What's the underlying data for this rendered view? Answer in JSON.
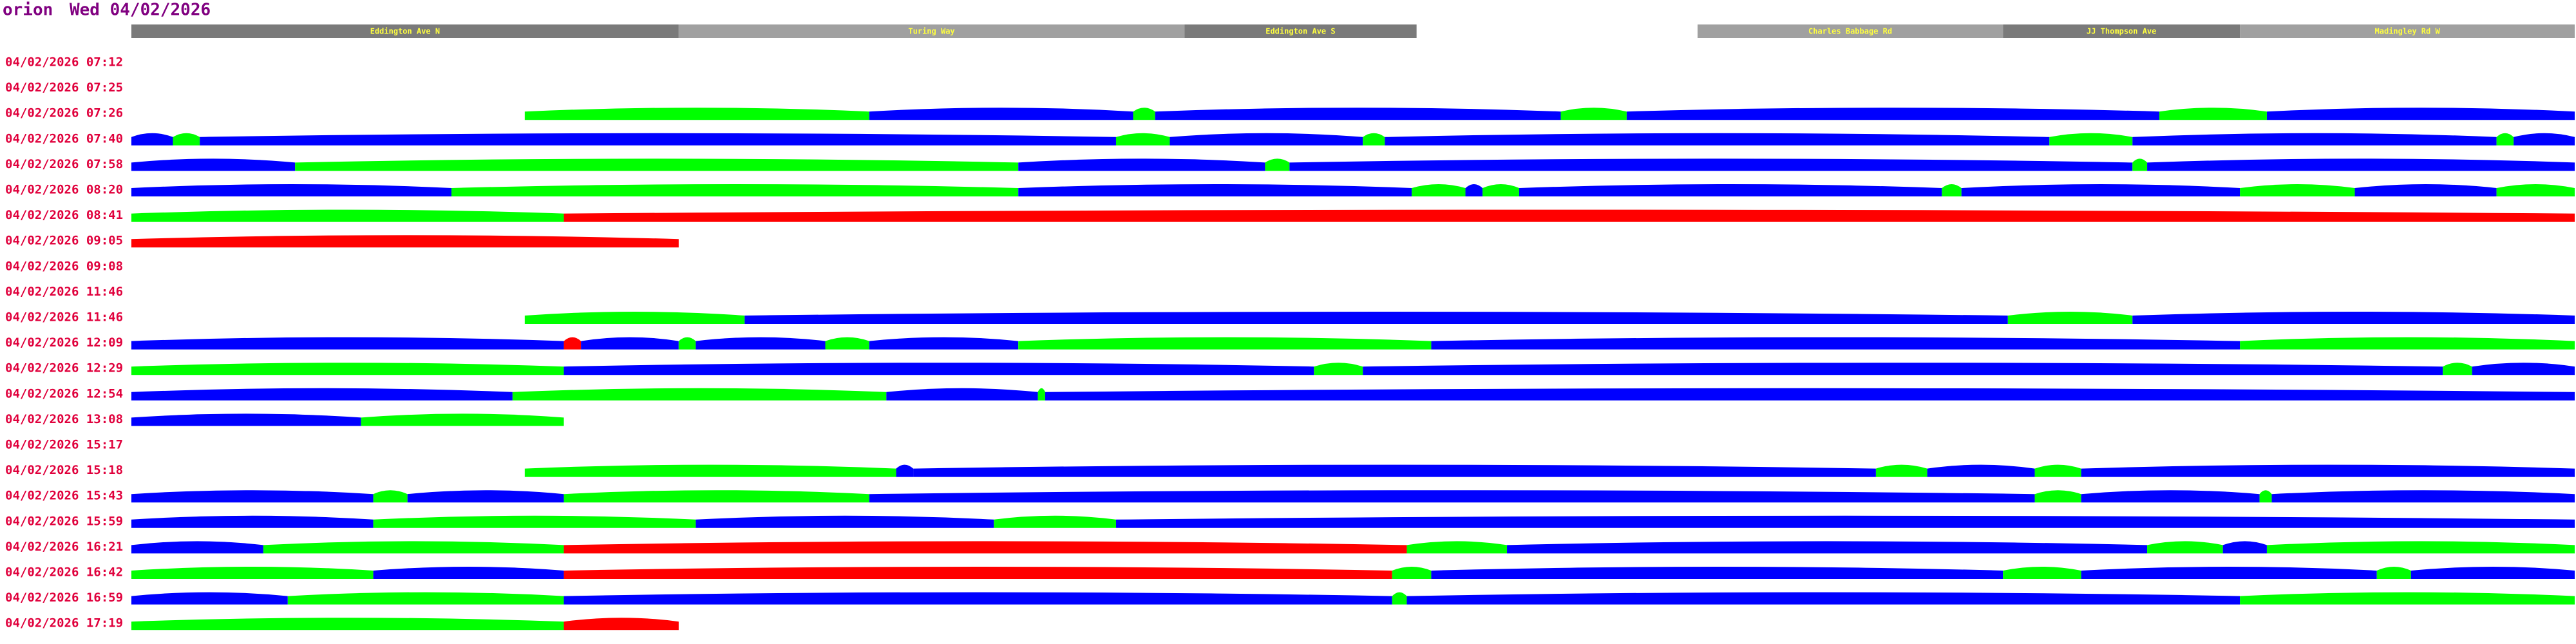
{
  "header": {
    "host": "orion",
    "date": "Wed 04/02/2026"
  },
  "route_range": [
    0,
    100
  ],
  "roads": [
    {
      "name": "Eddington Ave N",
      "from": 0,
      "to": 22.4,
      "color": "#7a7a7a"
    },
    {
      "name": "Turing Way",
      "from": 22.4,
      "to": 43.1,
      "color": "#a0a0a0"
    },
    {
      "name": "Eddington Ave S",
      "from": 43.1,
      "to": 52.6,
      "color": "#7a7a7a"
    },
    {
      "name": "Charles Babbage Rd",
      "from": 64.1,
      "to": 76.6,
      "color": "#a0a0a0"
    },
    {
      "name": "JJ Thompson Ave",
      "from": 76.6,
      "to": 86.3,
      "color": "#7a7a7a"
    },
    {
      "name": "Madingley Rd W",
      "from": 86.3,
      "to": 100,
      "color": "#a0a0a0"
    }
  ],
  "journeys": [
    {
      "time": "04/02/2026 07:12",
      "segments": []
    },
    {
      "time": "04/02/2026 07:25",
      "segments": []
    },
    {
      "time": "04/02/2026 07:26",
      "segments": [
        [
          16.1,
          30.2,
          "#00ff00"
        ],
        [
          30.2,
          41,
          "#0000ff"
        ],
        [
          41,
          41.9,
          "#00ff00"
        ],
        [
          41.9,
          58.5,
          "#0000ff"
        ],
        [
          58.5,
          61.2,
          "#00ff00"
        ],
        [
          61.2,
          83,
          "#0000ff"
        ],
        [
          83,
          87.4,
          "#00ff00"
        ],
        [
          87.4,
          100,
          "#0000ff"
        ]
      ]
    },
    {
      "time": "04/02/2026 07:40",
      "segments": [
        [
          0,
          1.7,
          "#0000ff"
        ],
        [
          1.7,
          2.8,
          "#00ff00"
        ],
        [
          2.8,
          40.3,
          "#0000ff"
        ],
        [
          40.3,
          42.5,
          "#00ff00"
        ],
        [
          42.5,
          50.4,
          "#0000ff"
        ],
        [
          50.4,
          51.3,
          "#00ff00"
        ],
        [
          51.3,
          78.5,
          "#0000ff"
        ],
        [
          78.5,
          81.9,
          "#00ff00"
        ],
        [
          81.9,
          96.8,
          "#0000ff"
        ],
        [
          96.8,
          97.5,
          "#00ff00"
        ],
        [
          97.5,
          100,
          "#0000ff"
        ]
      ]
    },
    {
      "time": "04/02/2026 07:58",
      "segments": [
        [
          0,
          6.7,
          "#0000ff"
        ],
        [
          6.7,
          36.3,
          "#00ff00"
        ],
        [
          36.3,
          46.4,
          "#0000ff"
        ],
        [
          46.4,
          47.4,
          "#00ff00"
        ],
        [
          47.4,
          81.9,
          "#0000ff"
        ],
        [
          81.9,
          82.5,
          "#00ff00"
        ],
        [
          82.5,
          100,
          "#0000ff"
        ]
      ]
    },
    {
      "time": "04/02/2026 08:20",
      "segments": [
        [
          0,
          13.1,
          "#0000ff"
        ],
        [
          13.1,
          36.3,
          "#00ff00"
        ],
        [
          36.3,
          52.4,
          "#0000ff"
        ],
        [
          52.4,
          54.6,
          "#00ff00"
        ],
        [
          54.6,
          55.3,
          "#0000ff"
        ],
        [
          55.3,
          56.8,
          "#00ff00"
        ],
        [
          56.8,
          74.1,
          "#0000ff"
        ],
        [
          74.1,
          74.9,
          "#00ff00"
        ],
        [
          74.9,
          86.3,
          "#0000ff"
        ],
        [
          86.3,
          91,
          "#00ff00"
        ],
        [
          91,
          96.8,
          "#0000ff"
        ],
        [
          96.8,
          100,
          "#00ff00"
        ]
      ]
    },
    {
      "time": "04/02/2026 08:41",
      "segments": [
        [
          0,
          17.7,
          "#00ff00"
        ],
        [
          17.7,
          100,
          "#ff0000"
        ]
      ]
    },
    {
      "time": "04/02/2026 09:05",
      "segments": [
        [
          0,
          22.4,
          "#ff0000"
        ]
      ]
    },
    {
      "time": "04/02/2026 09:08",
      "segments": []
    },
    {
      "time": "04/02/2026 11:46",
      "segments": []
    },
    {
      "time": "04/02/2026 11:46",
      "segments": [
        [
          16.1,
          25.1,
          "#00ff00"
        ],
        [
          25.1,
          76.8,
          "#0000ff"
        ],
        [
          76.8,
          81.9,
          "#00ff00"
        ],
        [
          81.9,
          100,
          "#0000ff"
        ]
      ]
    },
    {
      "time": "04/02/2026 12:09",
      "segments": [
        [
          0,
          17.7,
          "#0000ff"
        ],
        [
          17.7,
          18.4,
          "#ff0000"
        ],
        [
          18.4,
          22.4,
          "#0000ff"
        ],
        [
          22.4,
          23.1,
          "#00ff00"
        ],
        [
          23.1,
          28.4,
          "#0000ff"
        ],
        [
          28.4,
          30.2,
          "#00ff00"
        ],
        [
          30.2,
          36.3,
          "#0000ff"
        ],
        [
          36.3,
          53.2,
          "#00ff00"
        ],
        [
          53.2,
          86.3,
          "#0000ff"
        ],
        [
          86.3,
          100,
          "#00ff00"
        ]
      ]
    },
    {
      "time": "04/02/2026 12:29",
      "segments": [
        [
          0,
          17.7,
          "#00ff00"
        ],
        [
          17.7,
          48.4,
          "#0000ff"
        ],
        [
          48.4,
          50.4,
          "#00ff00"
        ],
        [
          50.4,
          94.6,
          "#0000ff"
        ],
        [
          94.6,
          95.8,
          "#00ff00"
        ],
        [
          95.8,
          100,
          "#0000ff"
        ]
      ]
    },
    {
      "time": "04/02/2026 12:54",
      "segments": [
        [
          0,
          15.6,
          "#0000ff"
        ],
        [
          15.6,
          30.9,
          "#00ff00"
        ],
        [
          30.9,
          37.1,
          "#0000ff"
        ],
        [
          37.1,
          37.4,
          "#00ff00"
        ],
        [
          37.4,
          100,
          "#0000ff"
        ]
      ]
    },
    {
      "time": "04/02/2026 13:08",
      "segments": [
        [
          0,
          9.4,
          "#0000ff"
        ],
        [
          9.4,
          17.7,
          "#00ff00"
        ]
      ]
    },
    {
      "time": "04/02/2026 15:17",
      "segments": []
    },
    {
      "time": "04/02/2026 15:18",
      "segments": [
        [
          16.1,
          31.3,
          "#00ff00"
        ],
        [
          31.3,
          32,
          "#0000ff"
        ],
        [
          32,
          71.4,
          "#0000ff"
        ],
        [
          71.4,
          73.5,
          "#00ff00"
        ],
        [
          73.5,
          77.9,
          "#0000ff"
        ],
        [
          77.9,
          79.8,
          "#00ff00"
        ],
        [
          79.8,
          100,
          "#0000ff"
        ]
      ]
    },
    {
      "time": "04/02/2026 15:43",
      "segments": [
        [
          0,
          9.9,
          "#0000ff"
        ],
        [
          9.9,
          11.3,
          "#00ff00"
        ],
        [
          11.3,
          17.7,
          "#0000ff"
        ],
        [
          17.7,
          30.2,
          "#00ff00"
        ],
        [
          30.2,
          77.9,
          "#0000ff"
        ],
        [
          77.9,
          79.8,
          "#00ff00"
        ],
        [
          79.8,
          87.1,
          "#0000ff"
        ],
        [
          87.1,
          87.6,
          "#00ff00"
        ],
        [
          87.6,
          100,
          "#0000ff"
        ]
      ]
    },
    {
      "time": "04/02/2026 15:59",
      "segments": [
        [
          0,
          9.9,
          "#0000ff"
        ],
        [
          9.9,
          23.1,
          "#00ff00"
        ],
        [
          23.1,
          35.3,
          "#0000ff"
        ],
        [
          35.3,
          40.3,
          "#00ff00"
        ],
        [
          40.3,
          100,
          "#0000ff"
        ]
      ]
    },
    {
      "time": "04/02/2026 16:21",
      "segments": [
        [
          0,
          5.4,
          "#0000ff"
        ],
        [
          5.4,
          17.7,
          "#00ff00"
        ],
        [
          17.7,
          52.2,
          "#ff0000"
        ],
        [
          52.2,
          56.3,
          "#00ff00"
        ],
        [
          56.3,
          82.5,
          "#0000ff"
        ],
        [
          82.5,
          85.6,
          "#00ff00"
        ],
        [
          85.6,
          87.4,
          "#0000ff"
        ],
        [
          87.4,
          100,
          "#00ff00"
        ]
      ]
    },
    {
      "time": "04/02/2026 16:42",
      "segments": [
        [
          0,
          9.9,
          "#00ff00"
        ],
        [
          9.9,
          17.7,
          "#0000ff"
        ],
        [
          17.7,
          51.6,
          "#ff0000"
        ],
        [
          51.6,
          53.2,
          "#00ff00"
        ],
        [
          53.2,
          76.6,
          "#0000ff"
        ],
        [
          76.6,
          79.8,
          "#00ff00"
        ],
        [
          79.8,
          91.9,
          "#0000ff"
        ],
        [
          91.9,
          93.3,
          "#00ff00"
        ],
        [
          93.3,
          100,
          "#0000ff"
        ]
      ]
    },
    {
      "time": "04/02/2026 16:59",
      "segments": [
        [
          0,
          6.4,
          "#0000ff"
        ],
        [
          6.4,
          17.7,
          "#00ff00"
        ],
        [
          17.7,
          51.6,
          "#0000ff"
        ],
        [
          51.6,
          52.2,
          "#00ff00"
        ],
        [
          52.2,
          86.3,
          "#0000ff"
        ],
        [
          86.3,
          100,
          "#00ff00"
        ]
      ]
    },
    {
      "time": "04/02/2026 17:19",
      "segments": [
        [
          0,
          17.7,
          "#00ff00"
        ],
        [
          17.7,
          22.4,
          "#ff0000"
        ]
      ]
    }
  ]
}
